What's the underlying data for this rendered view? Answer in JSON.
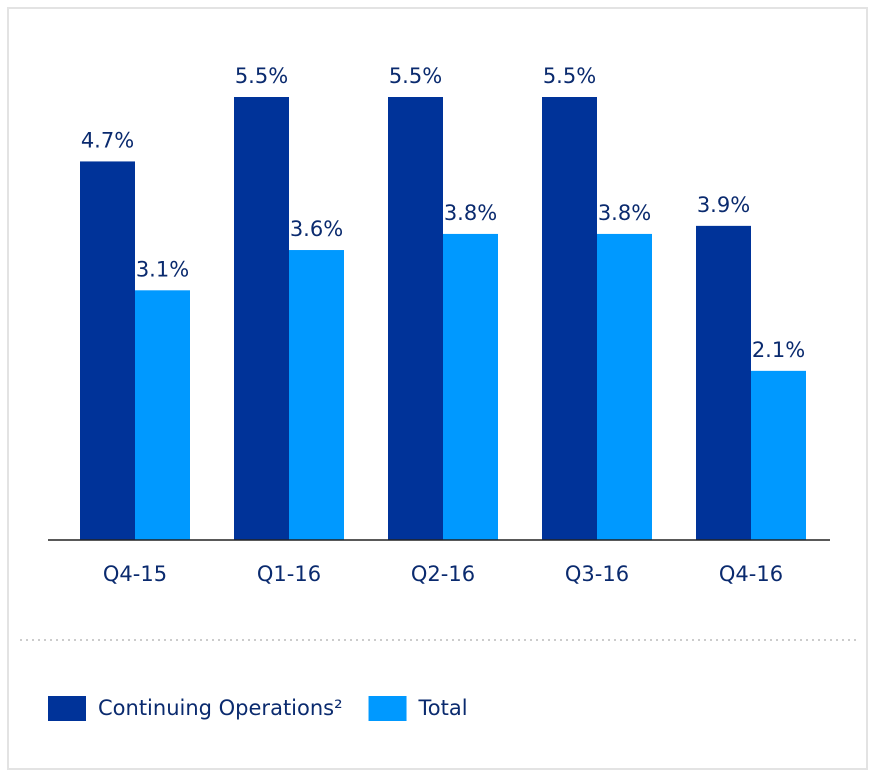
{
  "chart_data": {
    "type": "bar",
    "categories": [
      "Q4-15",
      "Q1-16",
      "Q2-16",
      "Q3-16",
      "Q4-16"
    ],
    "series": [
      {
        "name": "Continuing Operations²",
        "color": "#003399",
        "values": [
          4.7,
          5.5,
          5.5,
          5.5,
          3.9
        ],
        "value_labels": [
          "4.7%",
          "5.5%",
          "5.5%",
          "5.5%",
          "3.9%"
        ]
      },
      {
        "name": "Total",
        "color": "#0099ff",
        "values": [
          3.1,
          3.6,
          3.8,
          3.8,
          2.1
        ],
        "value_labels": [
          "3.1%",
          "3.6%",
          "3.8%",
          "3.8%",
          "2.1%"
        ]
      }
    ],
    "legend": "bottom-left"
  }
}
